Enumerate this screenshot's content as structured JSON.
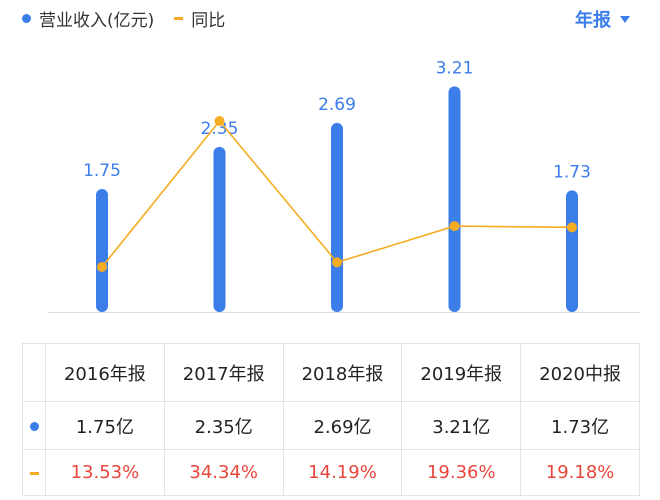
{
  "legend": {
    "revenue_label": "营业收入(亿元)",
    "yoy_label": "同比"
  },
  "period_selector": {
    "label": "年报"
  },
  "colors": {
    "bar": "#3b7de9",
    "line": "#f5ac22",
    "red": "#e8453c",
    "accent": "#3b7de9",
    "axis": "#dddddd"
  },
  "chart_data": {
    "type": "bar",
    "categories": [
      "2016年报",
      "2017年报",
      "2018年报",
      "2019年报",
      "2020中报"
    ],
    "series": [
      {
        "name": "营业收入(亿元)",
        "type": "bar",
        "values": [
          1.75,
          2.35,
          2.69,
          3.21,
          1.73
        ],
        "labels": [
          "1.75",
          "2.35",
          "2.69",
          "3.21",
          "1.73"
        ]
      },
      {
        "name": "同比",
        "type": "line",
        "values": [
          13.53,
          34.34,
          14.19,
          19.36,
          19.18
        ]
      }
    ],
    "data_labels": true
  },
  "table": {
    "headers": [
      "2016年报",
      "2017年报",
      "2018年报",
      "2019年报",
      "2020中报"
    ],
    "revenue": [
      "1.75亿",
      "2.35亿",
      "2.69亿",
      "3.21亿",
      "1.73亿"
    ],
    "yoy": [
      "13.53%",
      "34.34%",
      "14.19%",
      "19.36%",
      "19.18%"
    ]
  }
}
